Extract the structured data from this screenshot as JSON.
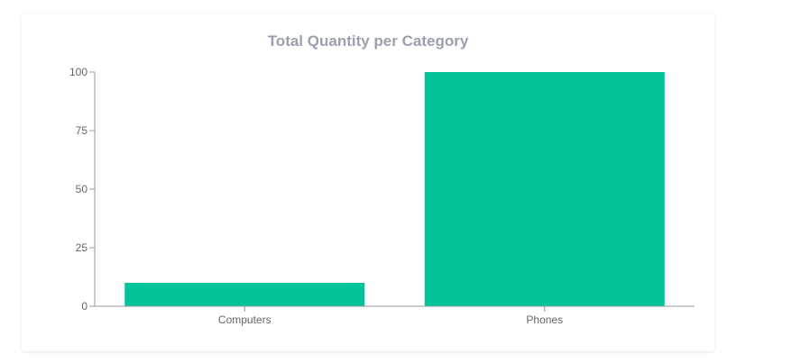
{
  "chart_data": {
    "type": "bar",
    "title": "Total Quantity per Category",
    "categories": [
      "Computers",
      "Phones"
    ],
    "values": [
      10,
      100
    ],
    "ylim": [
      0,
      100
    ],
    "yticks": [
      0,
      25,
      50,
      75,
      100
    ],
    "xlabel": "",
    "ylabel": "",
    "grid": false,
    "bar_color": "#02c39a",
    "axis_color": "#999999"
  }
}
